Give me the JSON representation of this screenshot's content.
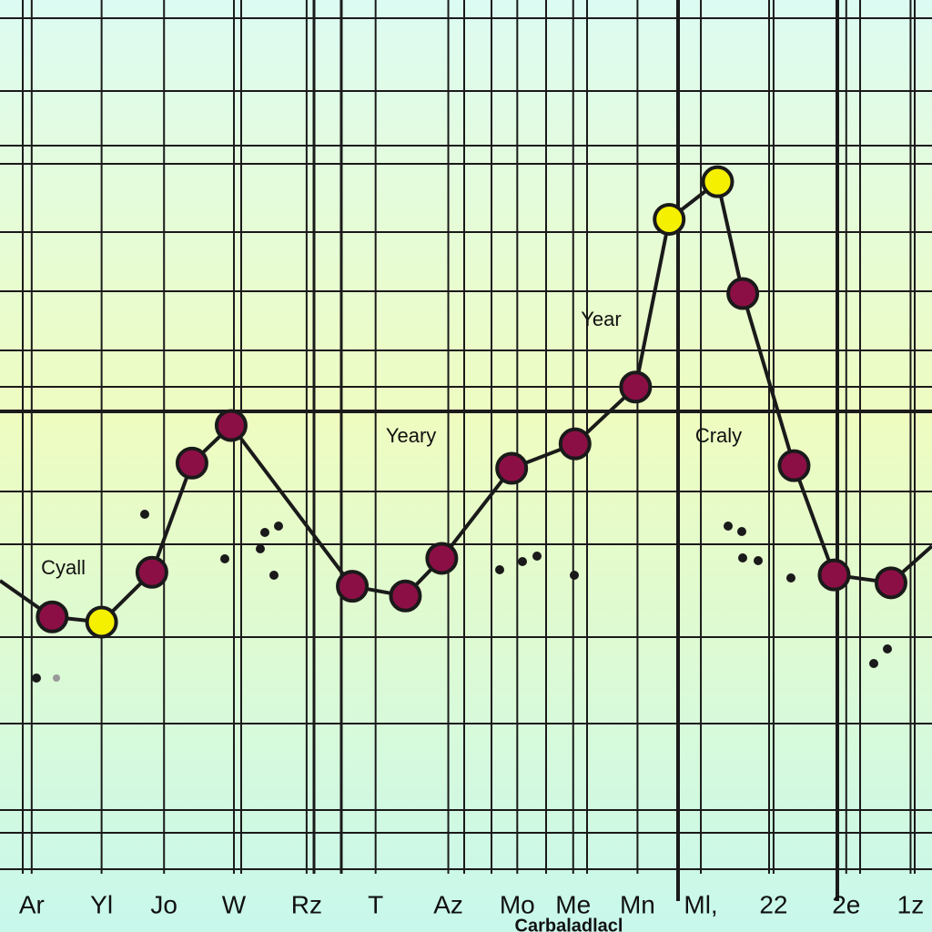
{
  "chart_data": {
    "type": "line",
    "x": [
      5.6,
      10.9,
      16.3,
      20.6,
      24.8,
      37.8,
      43.5,
      47.4,
      54.9,
      61.7,
      68.2,
      71.8,
      77.0,
      79.7,
      85.2,
      89.5,
      95.6
    ],
    "values": [
      29.4,
      28.8,
      34.5,
      47.0,
      51.3,
      32.9,
      31.8,
      36.1,
      46.4,
      49.2,
      55.7,
      74.9,
      79.2,
      66.4,
      46.7,
      34.2,
      33.3
    ],
    "point_colors": [
      "#8b0f45",
      "#f5f000",
      "#8b0f45",
      "#8b0f45",
      "#8b0f45",
      "#8b0f45",
      "#8b0f45",
      "#8b0f45",
      "#8b0f45",
      "#8b0f45",
      "#8b0f45",
      "#f5f000",
      "#f5f000",
      "#8b0f45",
      "#8b0f45",
      "#8b0f45",
      "#8b0f45"
    ],
    "line_color": "#1a1a1a",
    "xlim": [
      0,
      100
    ],
    "ylim": [
      0,
      100
    ],
    "xticks": [
      {
        "value": 3.4,
        "label": "Ar"
      },
      {
        "value": 10.9,
        "label": "Yl"
      },
      {
        "value": 17.6,
        "label": "Jo"
      },
      {
        "value": 25.1,
        "label": "W"
      },
      {
        "value": 32.9,
        "label": "Rz"
      },
      {
        "value": 40.3,
        "label": "T"
      },
      {
        "value": 48.1,
        "label": "Az"
      },
      {
        "value": 55.5,
        "label": "Mo"
      },
      {
        "value": 61.5,
        "label": "Me"
      },
      {
        "value": 68.4,
        "label": "Mn"
      },
      {
        "value": 75.2,
        "label": "Ml,"
      },
      {
        "value": 83.0,
        "label": "22"
      },
      {
        "value": 90.8,
        "label": "2e"
      },
      {
        "value": 97.7,
        "label": "1z"
      }
    ],
    "x_label": "Carbaladlacl",
    "annotations": [
      {
        "text": "Cyall",
        "x": 6.8,
        "y": 34.9
      },
      {
        "text": "Yeary",
        "x": 44.1,
        "y": 50.0
      },
      {
        "text": "Year",
        "x": 64.5,
        "y": 63.3
      },
      {
        "text": "Craly",
        "x": 77.1,
        "y": 50.0
      }
    ]
  }
}
